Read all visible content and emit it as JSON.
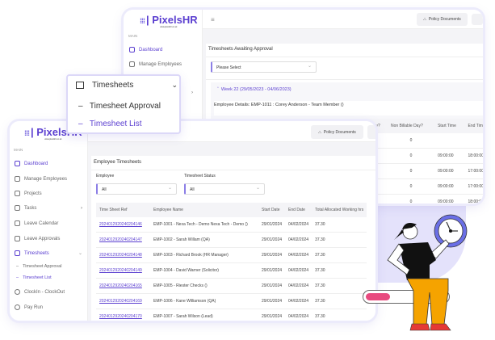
{
  "brand": {
    "name": "PixelsHR",
    "tagline": "www.pixelshr.co.uk",
    "accent": "#5b3fd0"
  },
  "back_window": {
    "sidebar": {
      "section": "MAIN",
      "items": [
        {
          "label": "Dashboard",
          "icon": "dashboard-icon"
        },
        {
          "label": "Manage Employees",
          "icon": "users-icon"
        }
      ]
    },
    "topbar": {
      "policy_button": "Policy Documents"
    },
    "card_title": "Timesheets Awaiting Approval",
    "select_placeholder": "Please Select",
    "week_label": "Week 22 (29/05/2023 - 04/06/2023)",
    "employee_details": "Employee Details: EMP-1011 : Corey Anderson - Team Member ()",
    "columns": [
      "n Day?",
      "Non Billable Day?",
      "Start Time",
      "End Time"
    ],
    "rows": [
      {
        "non_billable": "0",
        "start": "",
        "end": ""
      },
      {
        "non_billable": "0",
        "start": "09:00:00",
        "end": "18:00:00"
      },
      {
        "non_billable": "0",
        "start": "09:00:00",
        "end": "17:00:00"
      },
      {
        "non_billable": "0",
        "start": "09:00:00",
        "end": "17:00:00"
      },
      {
        "non_billable": "0",
        "start": "09:00:00",
        "end": "18:00:00"
      }
    ]
  },
  "popup": {
    "title": "Timesheets",
    "items": [
      "Timesheet Approval",
      "Timesheet List"
    ]
  },
  "front_window": {
    "sidebar": {
      "section": "MAIN",
      "items": [
        {
          "label": "Dashboard",
          "icon": "dashboard-icon"
        },
        {
          "label": "Manage Employees",
          "icon": "users-icon"
        },
        {
          "label": "Projects",
          "icon": "projects-icon"
        },
        {
          "label": "Tasks",
          "icon": "tasks-icon"
        },
        {
          "label": "Leave Calendar",
          "icon": "calendar-icon"
        },
        {
          "label": "Leave Approvals",
          "icon": "approval-icon"
        },
        {
          "label": "Timesheets",
          "icon": "timesheet-icon"
        },
        {
          "label": "Timesheet Approval",
          "icon": "dash-icon"
        },
        {
          "label": "Timesheet List",
          "icon": "dash-icon"
        },
        {
          "label": "ClockIn - ClockOut",
          "icon": "clock-icon"
        },
        {
          "label": "Pay Run",
          "icon": "payrun-icon"
        }
      ]
    },
    "topbar": {
      "policy_button": "Policy Documents"
    },
    "card_title": "Employee Timesheets",
    "filters": {
      "employee_label": "Employee",
      "employee_value": "All",
      "status_label": "Timesheet Status",
      "status_value": "All"
    },
    "columns": [
      "Time Sheet Ref",
      "Employee Name",
      "Start Date",
      "End Date",
      "Total Allocated Working hrs"
    ],
    "rows": [
      [
        "2024012920240204146",
        "EMP-1001 - Nexa Tech - Demo Nexa Tech - Demo ()",
        "29/01/2024",
        "04/02/2024",
        "37.30"
      ],
      [
        "2024012920240204147",
        "EMP-1002 - Sarah Willam (QA)",
        "29/01/2024",
        "04/02/2024",
        "37.30"
      ],
      [
        "2024012920240204148",
        "EMP-1003 - Richard Brook (HR Manager)",
        "29/01/2024",
        "04/02/2024",
        "37.30"
      ],
      [
        "2024012920240204149",
        "EMP-1004 - David Warner (Solicitor)",
        "29/01/2024",
        "04/02/2024",
        "37.30"
      ],
      [
        "2024012920240204165",
        "EMP-1005 - Riester Checks ()",
        "29/01/2024",
        "04/02/2024",
        "37.30"
      ],
      [
        "2024012920240204169",
        "EMP-1006 - Kane Williamson (QA)",
        "29/01/2024",
        "04/02/2024",
        "37.30"
      ],
      [
        "2024012920240204170",
        "EMP-1007 - Sarah Wilson (Lead)",
        "29/01/2024",
        "04/02/2024",
        "37.30"
      ]
    ]
  },
  "illustration": {
    "progress_percent": 30,
    "progress_color": "#e84a7f"
  }
}
